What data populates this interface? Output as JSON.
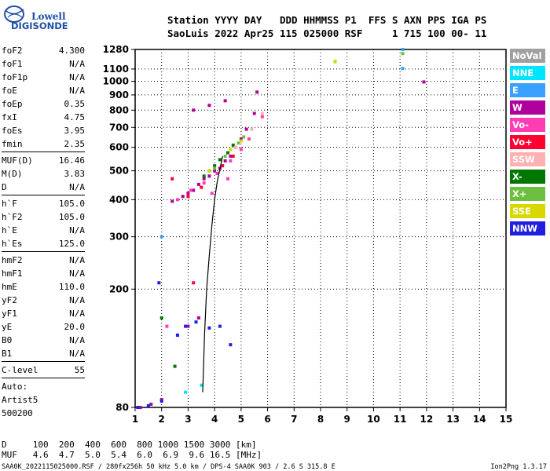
{
  "logo": {
    "line1": "Lowell",
    "line2": "DIGISONDE"
  },
  "header": {
    "row1": "Station YYYY DAY   DDD HHMMSS P1  FFS S AXN PPS IGA PS",
    "row2": "SaoLuis 2022 Apr25 115 025000 RSF     1 715 100 00- 11"
  },
  "params": [
    {
      "label": "foF2",
      "value": "4.300"
    },
    {
      "label": "foF1",
      "value": "N/A"
    },
    {
      "label": "foF1p",
      "value": "N/A"
    },
    {
      "label": "foE",
      "value": "N/A"
    },
    {
      "label": "foEp",
      "value": "0.35"
    },
    {
      "label": "fxI",
      "value": "4.75"
    },
    {
      "label": "foEs",
      "value": "3.95"
    },
    {
      "label": "fmin",
      "value": "2.35"
    },
    {
      "label": "MUF(D)",
      "value": "16.46"
    },
    {
      "label": "M(D)",
      "value": "3.83"
    },
    {
      "label": "D",
      "value": "N/A"
    },
    {
      "label": "h`F",
      "value": "105.0"
    },
    {
      "label": "h`F2",
      "value": "105.0"
    },
    {
      "label": "h`E",
      "value": "N/A"
    },
    {
      "label": "h`Es",
      "value": "125.0"
    },
    {
      "label": "hmF2",
      "value": "N/A"
    },
    {
      "label": "hmF1",
      "value": "N/A"
    },
    {
      "label": "hmE",
      "value": "110.0"
    },
    {
      "label": "yF2",
      "value": "N/A"
    },
    {
      "label": "yF1",
      "value": "N/A"
    },
    {
      "label": "yE",
      "value": "20.0"
    },
    {
      "label": "B0",
      "value": "N/A"
    },
    {
      "label": "B1",
      "value": "N/A"
    },
    {
      "label": "C-level",
      "value": "55"
    }
  ],
  "auto": [
    "Auto:",
    "Artist5",
    "500200"
  ],
  "bottom": {
    "d_row": "D     100  200  400  600  800 1000 1500 3000 [km]",
    "muf_row": "MUF   4.6  4.7  5.0  5.4  6.0  6.9  9.6 16.5 [MHz]",
    "footer_left": "SAA0K_2022115025000.RSF / 280fx256h 50 kHz 5.0 km / DPS-4 SAA0K 903 / 2.6 S 315.8 E",
    "footer_right": "Ion2Png 1.3.17"
  },
  "legend": [
    {
      "label": "NoVal",
      "color": "#a0a0a0"
    },
    {
      "label": "NNE",
      "color": "#00e5ff"
    },
    {
      "label": "E",
      "color": "#3aa0ff"
    },
    {
      "label": "W",
      "color": "#b0009c"
    },
    {
      "label": "Vo-",
      "color": "#ff3cb4"
    },
    {
      "label": "Vo+",
      "color": "#ff0030"
    },
    {
      "label": "SSW",
      "color": "#ffb0b0"
    },
    {
      "label": "X-",
      "color": "#007800"
    },
    {
      "label": "X+",
      "color": "#6cbf40"
    },
    {
      "label": "SSE",
      "color": "#d8d800"
    },
    {
      "label": "NNW",
      "color": "#2020e0"
    }
  ],
  "chart_data": {
    "type": "scatter",
    "title": "",
    "xlabel": "",
    "ylabel": "",
    "xlim": [
      1,
      15
    ],
    "ylim": [
      80,
      1280
    ],
    "y_scale": "log",
    "x_ticks": [
      1,
      2,
      3,
      4,
      5,
      6,
      7,
      8,
      9,
      10,
      11,
      12,
      13,
      14,
      15
    ],
    "y_ticks": [
      80,
      200,
      300,
      400,
      500,
      600,
      700,
      800,
      900,
      1000,
      1100,
      1280
    ],
    "grid": true,
    "legend_position": "right",
    "series": [
      {
        "name": "W",
        "color": "#b0009c",
        "points": [
          [
            2.4,
            395
          ],
          [
            2.8,
            410
          ],
          [
            3.0,
            420
          ],
          [
            3.2,
            430
          ],
          [
            3.4,
            450
          ],
          [
            3.6,
            470
          ],
          [
            3.8,
            480
          ],
          [
            4.0,
            500
          ],
          [
            4.2,
            510
          ],
          [
            4.4,
            540
          ],
          [
            4.6,
            560
          ],
          [
            4.8,
            600
          ],
          [
            5.0,
            640
          ],
          [
            5.2,
            690
          ],
          [
            5.5,
            780
          ],
          [
            3.2,
            800
          ],
          [
            3.8,
            830
          ],
          [
            4.4,
            860
          ],
          [
            5.6,
            920
          ],
          [
            1.2,
            80
          ],
          [
            1.6,
            82
          ],
          [
            2.0,
            85
          ],
          [
            2.6,
            140
          ],
          [
            3.0,
            150
          ],
          [
            3.4,
            160
          ],
          [
            11.9,
            995
          ]
        ]
      },
      {
        "name": "Vo-",
        "color": "#ff3cb4",
        "points": [
          [
            2.6,
            400
          ],
          [
            3.1,
            430
          ],
          [
            3.6,
            455
          ],
          [
            4.1,
            490
          ],
          [
            4.6,
            540
          ],
          [
            5.0,
            590
          ],
          [
            5.3,
            640
          ],
          [
            5.8,
            760
          ],
          [
            3.9,
            420
          ],
          [
            4.5,
            470
          ],
          [
            2.2,
            150
          ]
        ]
      },
      {
        "name": "Vo+",
        "color": "#ff0030",
        "points": [
          [
            3.0,
            410
          ],
          [
            3.5,
            440
          ],
          [
            4.3,
            520
          ],
          [
            4.7,
            560
          ],
          [
            2.4,
            470
          ],
          [
            3.2,
            210
          ]
        ]
      },
      {
        "name": "X-",
        "color": "#007800",
        "points": [
          [
            3.6,
            480
          ],
          [
            3.8,
            500
          ],
          [
            4.0,
            520
          ],
          [
            4.2,
            545
          ],
          [
            4.5,
            575
          ],
          [
            4.7,
            610
          ],
          [
            2.0,
            160
          ],
          [
            2.5,
            110
          ]
        ]
      },
      {
        "name": "X+",
        "color": "#6cbf40",
        "points": [
          [
            4.0,
            510
          ],
          [
            4.4,
            560
          ],
          [
            4.9,
            620
          ],
          [
            5.1,
            650
          ],
          [
            8.55,
            1165
          ],
          [
            11.1,
            1240
          ]
        ]
      },
      {
        "name": "SSE",
        "color": "#d8d800",
        "points": [
          [
            4.6,
            590
          ],
          [
            5.0,
            630
          ],
          [
            3.8,
            500
          ],
          [
            8.55,
            1168
          ]
        ]
      },
      {
        "name": "SSW",
        "color": "#ffb0b0",
        "points": [
          [
            5.4,
            690
          ],
          [
            5.8,
            780
          ],
          [
            4.8,
            600
          ]
        ]
      },
      {
        "name": "NNW",
        "color": "#2020e0",
        "points": [
          [
            1.1,
            80
          ],
          [
            1.5,
            81
          ],
          [
            2.0,
            84
          ],
          [
            2.6,
            140
          ],
          [
            2.9,
            150
          ],
          [
            3.3,
            155
          ],
          [
            3.8,
            148
          ],
          [
            4.2,
            150
          ],
          [
            1.9,
            210
          ],
          [
            4.6,
            130
          ]
        ]
      },
      {
        "name": "E",
        "color": "#3aa0ff",
        "points": [
          [
            11.1,
            1105
          ],
          [
            11.1,
            1280
          ],
          [
            2.0,
            300
          ]
        ]
      },
      {
        "name": "NNE",
        "color": "#00e5ff",
        "points": [
          [
            2.9,
            90
          ],
          [
            3.5,
            95
          ]
        ]
      }
    ],
    "trace": {
      "name": "",
      "points": [
        [
          3.55,
          90
        ],
        [
          3.62,
          140
        ],
        [
          3.7,
          200
        ],
        [
          3.8,
          260
        ],
        [
          3.9,
          330
        ],
        [
          4.0,
          400
        ],
        [
          4.1,
          460
        ],
        [
          4.3,
          560
        ]
      ]
    }
  }
}
